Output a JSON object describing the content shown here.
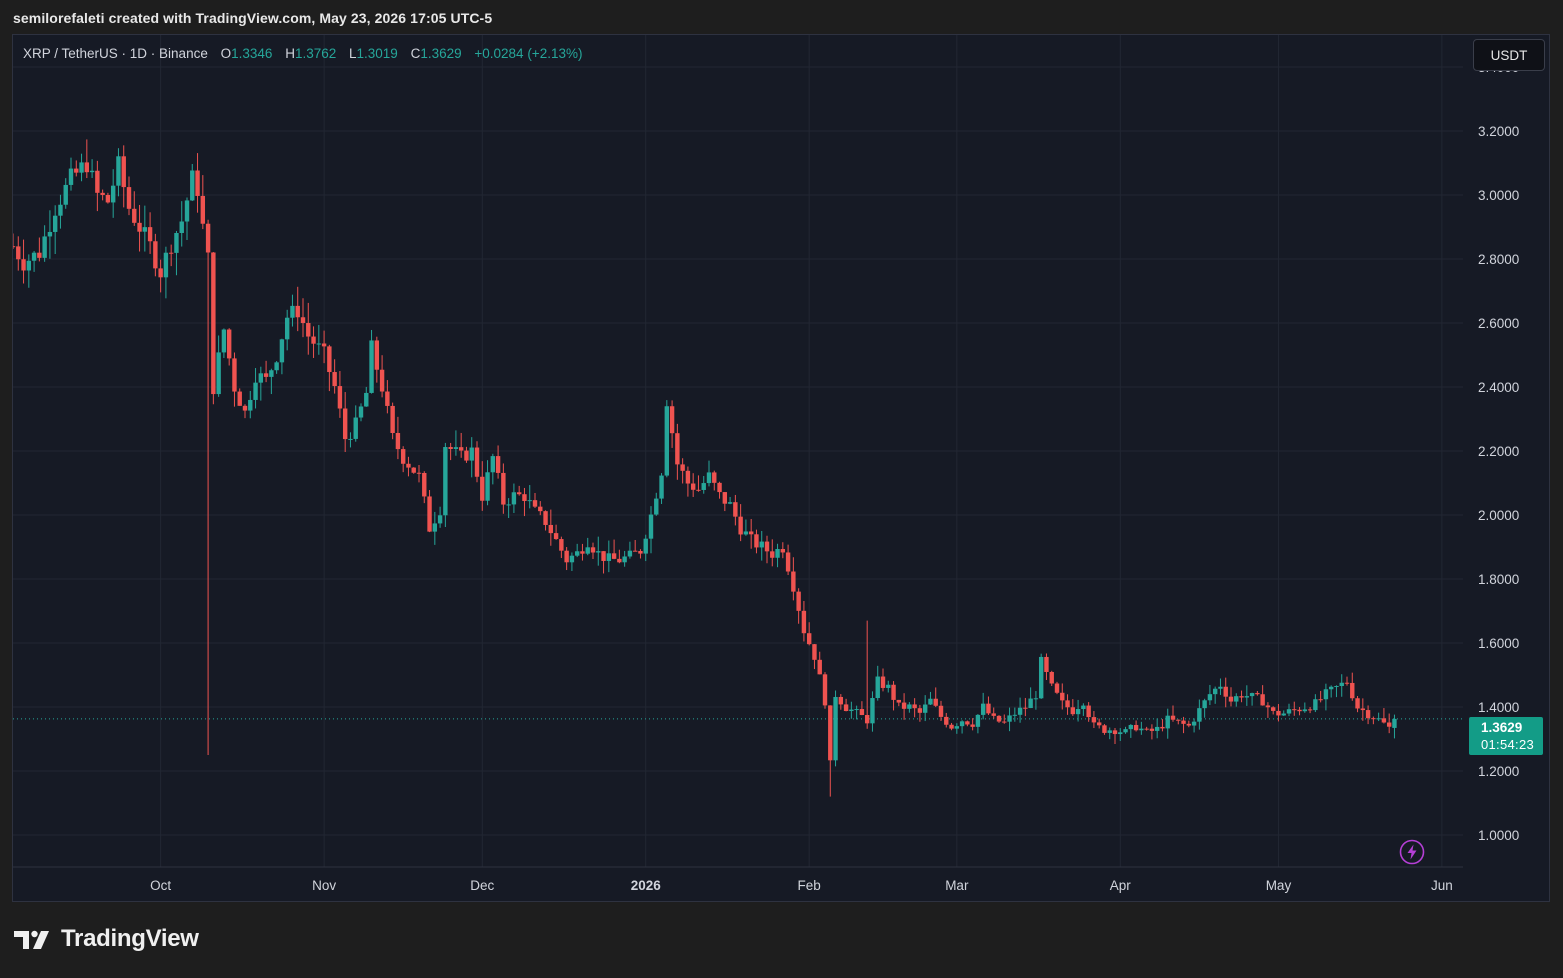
{
  "header": {
    "text": "semilorefaleti created with TradingView.com, May 23, 2026 17:05 UTC-5"
  },
  "legend": {
    "symbol": "XRP / TetherUS · 1D · Binance",
    "open_label": "O",
    "open": "1.3346",
    "high_label": "H",
    "high": "1.3762",
    "low_label": "L",
    "low": "1.3019",
    "close_label": "C",
    "close": "1.3629",
    "change": "+0.0284 (+2.13%)"
  },
  "currency_button": "USDT",
  "price_tag": {
    "price": "1.3629",
    "countdown": "01:54:23"
  },
  "footer": {
    "brand": "TradingView"
  },
  "colors": {
    "up": "#26a69a",
    "down": "#ef5350",
    "background": "#161a25",
    "grid": "#222733",
    "axis_text": "#d1d4dc",
    "price_line": "#26a69a"
  },
  "icons": {
    "alert": "lightning-bolt-icon",
    "brand": "tradingview-logo-icon"
  },
  "chart_data": {
    "type": "candlestick",
    "title": "XRP / TetherUS · 1D · Binance",
    "y_axis_ticks": [
      "1.0000",
      "1.2000",
      "1.4000",
      "1.6000",
      "1.8000",
      "2.0000",
      "2.2000",
      "2.4000",
      "2.6000",
      "2.8000",
      "3.0000",
      "3.2000",
      "3.4000"
    ],
    "x_axis_ticks": [
      {
        "label": "Oct",
        "date": "2025-10-01",
        "bold": false
      },
      {
        "label": "Nov",
        "date": "2025-11-01",
        "bold": false
      },
      {
        "label": "Dec",
        "date": "2025-12-01",
        "bold": false
      },
      {
        "label": "2026",
        "date": "2026-01-01",
        "bold": true
      },
      {
        "label": "Feb",
        "date": "2026-02-01",
        "bold": false
      },
      {
        "label": "Mar",
        "date": "2026-03-01",
        "bold": false
      },
      {
        "label": "Apr",
        "date": "2026-04-01",
        "bold": false
      },
      {
        "label": "May",
        "date": "2026-05-01",
        "bold": false
      },
      {
        "label": "Jun",
        "date": "2026-06-01",
        "bold": false
      }
    ],
    "y_range": [
      0.9,
      3.5
    ],
    "x_range": [
      "2025-09-03",
      "2026-06-05"
    ],
    "grid": true,
    "last_price": 1.3629,
    "series_path": [
      [
        "2025-09-03",
        2.84
      ],
      [
        "2025-09-05",
        2.79
      ],
      [
        "2025-09-08",
        2.82
      ],
      [
        "2025-09-11",
        2.96
      ],
      [
        "2025-09-14",
        3.05
      ],
      [
        "2025-09-17",
        3.1
      ],
      [
        "2025-09-19",
        3.0
      ],
      [
        "2025-09-21",
        2.98
      ],
      [
        "2025-09-23",
        3.09
      ],
      [
        "2025-09-25",
        2.96
      ],
      [
        "2025-09-27",
        2.9
      ],
      [
        "2025-09-29",
        2.84
      ],
      [
        "2025-10-01",
        2.76
      ],
      [
        "2025-10-03",
        2.85
      ],
      [
        "2025-10-05",
        2.92
      ],
      [
        "2025-10-07",
        3.05
      ],
      [
        "2025-10-08",
        3.02
      ],
      [
        "2025-10-09",
        2.9
      ],
      [
        "2025-10-10",
        2.8
      ],
      [
        "2025-10-11",
        2.4
      ],
      [
        "2025-10-13",
        2.58
      ],
      [
        "2025-10-15",
        2.4
      ],
      [
        "2025-10-17",
        2.32
      ],
      [
        "2025-10-19",
        2.44
      ],
      [
        "2025-10-21",
        2.42
      ],
      [
        "2025-10-23",
        2.5
      ],
      [
        "2025-10-25",
        2.62
      ],
      [
        "2025-10-27",
        2.64
      ],
      [
        "2025-10-29",
        2.56
      ],
      [
        "2025-11-01",
        2.5
      ],
      [
        "2025-11-03",
        2.4
      ],
      [
        "2025-11-05",
        2.24
      ],
      [
        "2025-11-07",
        2.28
      ],
      [
        "2025-11-09",
        2.38
      ],
      [
        "2025-11-10",
        2.52
      ],
      [
        "2025-11-12",
        2.4
      ],
      [
        "2025-11-14",
        2.24
      ],
      [
        "2025-11-16",
        2.18
      ],
      [
        "2025-11-19",
        2.12
      ],
      [
        "2025-11-21",
        1.96
      ],
      [
        "2025-11-23",
        2.02
      ],
      [
        "2025-11-24",
        2.22
      ],
      [
        "2025-11-27",
        2.18
      ],
      [
        "2025-11-29",
        2.2
      ],
      [
        "2025-12-01",
        2.06
      ],
      [
        "2025-12-03",
        2.18
      ],
      [
        "2025-12-05",
        2.04
      ],
      [
        "2025-12-07",
        2.06
      ],
      [
        "2025-12-09",
        2.06
      ],
      [
        "2025-12-11",
        2.01
      ],
      [
        "2025-12-13",
        1.98
      ],
      [
        "2025-12-15",
        1.92
      ],
      [
        "2025-12-17",
        1.86
      ],
      [
        "2025-12-19",
        1.88
      ],
      [
        "2025-12-21",
        1.92
      ],
      [
        "2025-12-23",
        1.88
      ],
      [
        "2025-12-25",
        1.86
      ],
      [
        "2025-12-27",
        1.86
      ],
      [
        "2025-12-29",
        1.87
      ],
      [
        "2025-12-31",
        1.89
      ],
      [
        "2026-01-02",
        2.0
      ],
      [
        "2026-01-04",
        2.14
      ],
      [
        "2026-01-05",
        2.36
      ],
      [
        "2026-01-07",
        2.16
      ],
      [
        "2026-01-09",
        2.1
      ],
      [
        "2026-01-11",
        2.08
      ],
      [
        "2026-01-13",
        2.12
      ],
      [
        "2026-01-15",
        2.06
      ],
      [
        "2026-01-17",
        2.03
      ],
      [
        "2026-01-19",
        1.96
      ],
      [
        "2026-01-21",
        1.92
      ],
      [
        "2026-01-23",
        1.9
      ],
      [
        "2026-01-25",
        1.88
      ],
      [
        "2026-01-27",
        1.9
      ],
      [
        "2026-01-29",
        1.78
      ],
      [
        "2026-01-31",
        1.64
      ],
      [
        "2026-02-02",
        1.56
      ],
      [
        "2026-02-04",
        1.42
      ],
      [
        "2026-02-05",
        1.22
      ],
      [
        "2026-02-06",
        1.44
      ],
      [
        "2026-02-08",
        1.4
      ],
      [
        "2026-02-10",
        1.38
      ],
      [
        "2026-02-12",
        1.36
      ],
      [
        "2026-02-14",
        1.48
      ],
      [
        "2026-02-16",
        1.46
      ],
      [
        "2026-02-18",
        1.4
      ],
      [
        "2026-02-20",
        1.4
      ],
      [
        "2026-02-22",
        1.38
      ],
      [
        "2026-02-24",
        1.42
      ],
      [
        "2026-02-26",
        1.37
      ],
      [
        "2026-02-28",
        1.34
      ],
      [
        "2026-03-02",
        1.36
      ],
      [
        "2026-03-04",
        1.35
      ],
      [
        "2026-03-06",
        1.4
      ],
      [
        "2026-03-08",
        1.36
      ],
      [
        "2026-03-10",
        1.35
      ],
      [
        "2026-03-12",
        1.38
      ],
      [
        "2026-03-14",
        1.4
      ],
      [
        "2026-03-16",
        1.44
      ],
      [
        "2026-03-17",
        1.54
      ],
      [
        "2026-03-19",
        1.46
      ],
      [
        "2026-03-21",
        1.41
      ],
      [
        "2026-03-23",
        1.39
      ],
      [
        "2026-03-25",
        1.42
      ],
      [
        "2026-03-27",
        1.34
      ],
      [
        "2026-03-29",
        1.33
      ],
      [
        "2026-03-31",
        1.33
      ],
      [
        "2026-04-02",
        1.32
      ],
      [
        "2026-04-04",
        1.34
      ],
      [
        "2026-04-06",
        1.32
      ],
      [
        "2026-04-08",
        1.33
      ],
      [
        "2026-04-10",
        1.36
      ],
      [
        "2026-04-12",
        1.35
      ],
      [
        "2026-04-14",
        1.34
      ],
      [
        "2026-04-16",
        1.39
      ],
      [
        "2026-04-18",
        1.44
      ],
      [
        "2026-04-20",
        1.47
      ],
      [
        "2026-04-22",
        1.42
      ],
      [
        "2026-04-24",
        1.44
      ],
      [
        "2026-04-26",
        1.43
      ],
      [
        "2026-04-28",
        1.42
      ],
      [
        "2026-04-30",
        1.38
      ],
      [
        "2026-05-02",
        1.38
      ],
      [
        "2026-05-04",
        1.39
      ],
      [
        "2026-05-06",
        1.4
      ],
      [
        "2026-05-08",
        1.41
      ],
      [
        "2026-05-10",
        1.44
      ],
      [
        "2026-05-12",
        1.46
      ],
      [
        "2026-05-14",
        1.48
      ],
      [
        "2026-05-16",
        1.4
      ],
      [
        "2026-05-18",
        1.38
      ],
      [
        "2026-05-20",
        1.36
      ],
      [
        "2026-05-22",
        1.3346
      ],
      [
        "2026-05-23",
        1.3629
      ]
    ]
  }
}
